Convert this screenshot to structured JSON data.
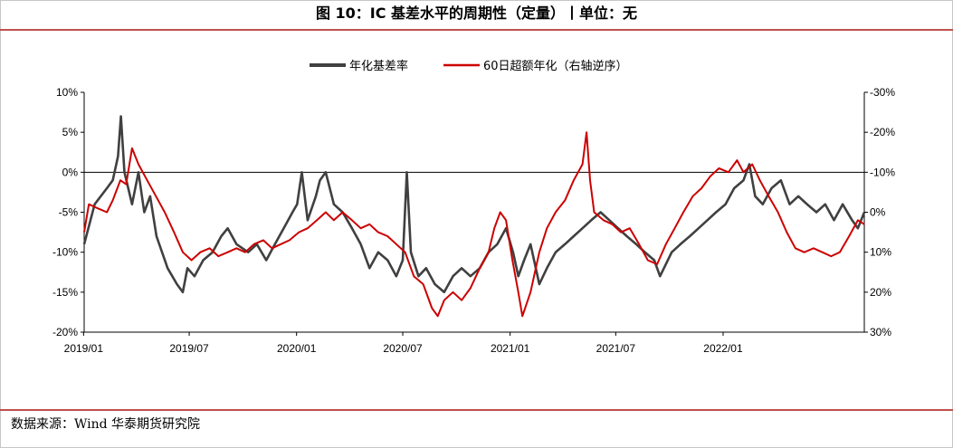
{
  "header": {
    "title": "图 10：IC 基差水平的周期性（定量）丨单位：无"
  },
  "footer": {
    "source": "数据来源：Wind 华泰期货研究院"
  },
  "chart_data": {
    "type": "line",
    "title": "图 10：IC 基差水平的周期性（定量）丨单位：无",
    "legend_position": "top-center",
    "x_tick_labels": [
      "2019/01",
      "2019/07",
      "2020/01",
      "2020/07",
      "2021/01",
      "2021/07",
      "2022/01"
    ],
    "x_range": [
      "2019-01-02",
      "2022-08-31"
    ],
    "y_left": {
      "range": [
        -20,
        10
      ],
      "ticks": [
        "10%",
        "5%",
        "0%",
        "-5%",
        "-10%",
        "-15%",
        "-20%"
      ]
    },
    "y_right": {
      "range": [
        -30,
        30
      ],
      "reversed": true,
      "ticks": [
        "-30%",
        "-20%",
        "-10%",
        "0%",
        "10%",
        "20%",
        "30%"
      ]
    },
    "zero_line": true,
    "grid": false,
    "series": [
      {
        "name": "年化基差率",
        "color": "#404040",
        "axis": "left",
        "points": [
          [
            "2019-01-02",
            -9
          ],
          [
            "2019-01-20",
            -4
          ],
          [
            "2019-02-10",
            -2
          ],
          [
            "2019-02-20",
            -1
          ],
          [
            "2019-03-01",
            2
          ],
          [
            "2019-03-06",
            7
          ],
          [
            "2019-03-12",
            0
          ],
          [
            "2019-03-25",
            -4
          ],
          [
            "2019-04-05",
            0
          ],
          [
            "2019-04-15",
            -5
          ],
          [
            "2019-04-25",
            -3
          ],
          [
            "2019-05-06",
            -8
          ],
          [
            "2019-05-25",
            -12
          ],
          [
            "2019-06-10",
            -14
          ],
          [
            "2019-06-20",
            -15
          ],
          [
            "2019-06-28",
            -12
          ],
          [
            "2019-07-10",
            -13
          ],
          [
            "2019-07-25",
            -11
          ],
          [
            "2019-08-10",
            -10
          ],
          [
            "2019-08-25",
            -8
          ],
          [
            "2019-09-05",
            -7
          ],
          [
            "2019-09-20",
            -9
          ],
          [
            "2019-10-10",
            -10
          ],
          [
            "2019-10-25",
            -9
          ],
          [
            "2019-11-10",
            -11
          ],
          [
            "2019-11-25",
            -9
          ],
          [
            "2019-12-10",
            -7
          ],
          [
            "2019-12-25",
            -5
          ],
          [
            "2020-01-02",
            -4
          ],
          [
            "2020-01-10",
            0
          ],
          [
            "2020-01-20",
            -6
          ],
          [
            "2020-02-03",
            -3
          ],
          [
            "2020-02-10",
            -1
          ],
          [
            "2020-02-20",
            0
          ],
          [
            "2020-03-05",
            -4
          ],
          [
            "2020-03-20",
            -5
          ],
          [
            "2020-04-05",
            -7
          ],
          [
            "2020-04-20",
            -9
          ],
          [
            "2020-05-05",
            -12
          ],
          [
            "2020-05-20",
            -10
          ],
          [
            "2020-06-05",
            -11
          ],
          [
            "2020-06-20",
            -13
          ],
          [
            "2020-07-01",
            -11
          ],
          [
            "2020-07-08",
            0
          ],
          [
            "2020-07-15",
            -10
          ],
          [
            "2020-07-28",
            -13
          ],
          [
            "2020-08-10",
            -12
          ],
          [
            "2020-08-25",
            -14
          ],
          [
            "2020-09-10",
            -15
          ],
          [
            "2020-09-25",
            -13
          ],
          [
            "2020-10-10",
            -12
          ],
          [
            "2020-10-25",
            -13
          ],
          [
            "2020-11-10",
            -12
          ],
          [
            "2020-11-25",
            -10
          ],
          [
            "2020-12-10",
            -9
          ],
          [
            "2020-12-25",
            -7
          ],
          [
            "2021-01-06",
            -10
          ],
          [
            "2021-01-15",
            -13
          ],
          [
            "2021-01-25",
            -11
          ],
          [
            "2021-02-05",
            -9
          ],
          [
            "2021-02-20",
            -14
          ],
          [
            "2021-03-05",
            -12
          ],
          [
            "2021-03-20",
            -10
          ],
          [
            "2021-04-05",
            -9
          ],
          [
            "2021-04-20",
            -8
          ],
          [
            "2021-05-05",
            -7
          ],
          [
            "2021-05-20",
            -6
          ],
          [
            "2021-06-05",
            -5
          ],
          [
            "2021-06-20",
            -6
          ],
          [
            "2021-07-05",
            -7
          ],
          [
            "2021-07-20",
            -8
          ],
          [
            "2021-08-05",
            -9
          ],
          [
            "2021-08-20",
            -10
          ],
          [
            "2021-09-05",
            -11
          ],
          [
            "2021-09-15",
            -13
          ],
          [
            "2021-10-05",
            -10
          ],
          [
            "2021-10-20",
            -9
          ],
          [
            "2021-11-05",
            -8
          ],
          [
            "2021-11-20",
            -7
          ],
          [
            "2021-12-05",
            -6
          ],
          [
            "2021-12-20",
            -5
          ],
          [
            "2022-01-05",
            -4
          ],
          [
            "2022-01-20",
            -2
          ],
          [
            "2022-02-05",
            -1
          ],
          [
            "2022-02-15",
            1
          ],
          [
            "2022-02-25",
            -3
          ],
          [
            "2022-03-10",
            -4
          ],
          [
            "2022-03-25",
            -2
          ],
          [
            "2022-04-10",
            -1
          ],
          [
            "2022-04-25",
            -4
          ],
          [
            "2022-05-10",
            -3
          ],
          [
            "2022-05-25",
            -4
          ],
          [
            "2022-06-10",
            -5
          ],
          [
            "2022-06-25",
            -4
          ],
          [
            "2022-07-10",
            -6
          ],
          [
            "2022-07-25",
            -4
          ],
          [
            "2022-08-10",
            -6
          ],
          [
            "2022-08-20",
            -7
          ],
          [
            "2022-08-31",
            -5
          ]
        ]
      },
      {
        "name": "60日超额年化（右轴逆序）",
        "color": "#cc0000",
        "axis": "right",
        "points": [
          [
            "2019-01-02",
            5
          ],
          [
            "2019-01-10",
            -2
          ],
          [
            "2019-01-25",
            -1
          ],
          [
            "2019-02-10",
            0
          ],
          [
            "2019-02-20",
            -3
          ],
          [
            "2019-03-05",
            -8
          ],
          [
            "2019-03-15",
            -7
          ],
          [
            "2019-03-25",
            -16
          ],
          [
            "2019-04-05",
            -12
          ],
          [
            "2019-04-20",
            -8
          ],
          [
            "2019-05-05",
            -4
          ],
          [
            "2019-05-20",
            0
          ],
          [
            "2019-06-05",
            5
          ],
          [
            "2019-06-20",
            10
          ],
          [
            "2019-07-05",
            12
          ],
          [
            "2019-07-20",
            10
          ],
          [
            "2019-08-05",
            9
          ],
          [
            "2019-08-20",
            11
          ],
          [
            "2019-09-05",
            10
          ],
          [
            "2019-09-20",
            9
          ],
          [
            "2019-10-05",
            10
          ],
          [
            "2019-10-20",
            8
          ],
          [
            "2019-11-05",
            7
          ],
          [
            "2019-11-20",
            9
          ],
          [
            "2019-12-05",
            8
          ],
          [
            "2019-12-20",
            7
          ],
          [
            "2020-01-05",
            5
          ],
          [
            "2020-01-20",
            4
          ],
          [
            "2020-02-05",
            2
          ],
          [
            "2020-02-20",
            0
          ],
          [
            "2020-03-05",
            2
          ],
          [
            "2020-03-20",
            0
          ],
          [
            "2020-04-05",
            2
          ],
          [
            "2020-04-20",
            4
          ],
          [
            "2020-05-05",
            3
          ],
          [
            "2020-05-20",
            5
          ],
          [
            "2020-06-05",
            6
          ],
          [
            "2020-06-20",
            8
          ],
          [
            "2020-07-05",
            10
          ],
          [
            "2020-07-20",
            16
          ],
          [
            "2020-08-05",
            18
          ],
          [
            "2020-08-20",
            24
          ],
          [
            "2020-08-30",
            26
          ],
          [
            "2020-09-10",
            22
          ],
          [
            "2020-09-25",
            20
          ],
          [
            "2020-10-10",
            22
          ],
          [
            "2020-10-25",
            19
          ],
          [
            "2020-11-10",
            14
          ],
          [
            "2020-11-25",
            10
          ],
          [
            "2020-12-05",
            4
          ],
          [
            "2020-12-15",
            0
          ],
          [
            "2020-12-25",
            2
          ],
          [
            "2021-01-05",
            12
          ],
          [
            "2021-01-15",
            20
          ],
          [
            "2021-01-22",
            26
          ],
          [
            "2021-02-05",
            20
          ],
          [
            "2021-02-20",
            10
          ],
          [
            "2021-03-05",
            4
          ],
          [
            "2021-03-20",
            0
          ],
          [
            "2021-04-05",
            -3
          ],
          [
            "2021-04-20",
            -8
          ],
          [
            "2021-05-05",
            -12
          ],
          [
            "2021-05-12",
            -20
          ],
          [
            "2021-05-18",
            -8
          ],
          [
            "2021-05-25",
            0
          ],
          [
            "2021-06-10",
            2
          ],
          [
            "2021-06-25",
            3
          ],
          [
            "2021-07-10",
            5
          ],
          [
            "2021-07-25",
            4
          ],
          [
            "2021-08-10",
            8
          ],
          [
            "2021-08-25",
            12
          ],
          [
            "2021-09-10",
            13
          ],
          [
            "2021-09-25",
            8
          ],
          [
            "2021-10-10",
            4
          ],
          [
            "2021-10-25",
            0
          ],
          [
            "2021-11-10",
            -4
          ],
          [
            "2021-11-25",
            -6
          ],
          [
            "2021-12-10",
            -9
          ],
          [
            "2021-12-25",
            -11
          ],
          [
            "2022-01-10",
            -10
          ],
          [
            "2022-01-25",
            -13
          ],
          [
            "2022-02-05",
            -10
          ],
          [
            "2022-02-20",
            -12
          ],
          [
            "2022-03-05",
            -8
          ],
          [
            "2022-03-20",
            -4
          ],
          [
            "2022-04-05",
            0
          ],
          [
            "2022-04-20",
            5
          ],
          [
            "2022-05-05",
            9
          ],
          [
            "2022-05-20",
            10
          ],
          [
            "2022-06-05",
            9
          ],
          [
            "2022-06-20",
            10
          ],
          [
            "2022-07-05",
            11
          ],
          [
            "2022-07-20",
            10
          ],
          [
            "2022-08-05",
            6
          ],
          [
            "2022-08-20",
            2
          ],
          [
            "2022-08-31",
            3
          ]
        ]
      }
    ]
  }
}
